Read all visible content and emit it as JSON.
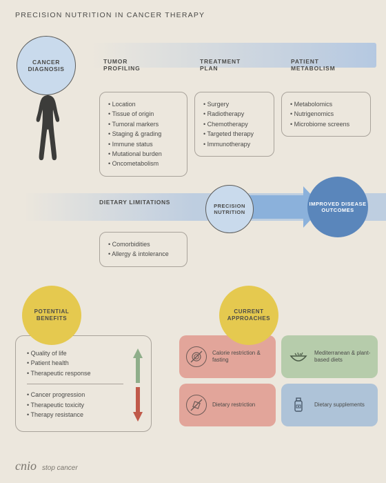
{
  "title": "PRECISION NUTRITION IN CANCER THERAPY",
  "colors": {
    "background": "#ece7dd",
    "blue_light": "#c9daec",
    "blue_mid": "#8bb1db",
    "blue_dark": "#5a86bb",
    "yellow": "#e5c94f",
    "salmon": "#e2a59a",
    "green": "#b6ccab",
    "steel": "#aec3d8",
    "up_arrow": "#8fae8a",
    "down_arrow": "#c05a4a"
  },
  "stages": {
    "diagnosis": "CANCER\nDIAGNOSIS",
    "tumor": "TUMOR\nPROFILING",
    "treatment": "TREATMENT\nPLAN",
    "metabolism": "PATIENT\nMETABOLISM"
  },
  "tumor_items": [
    "Location",
    "Tissue of origin",
    "Tumoral markers",
    "Staging & grading",
    "Immune status",
    "Mutational burden",
    "Oncometabolism"
  ],
  "treatment_items": [
    "Surgery",
    "Radiotherapy",
    "Chemotherapy",
    "Targeted therapy",
    "Immunotherapy"
  ],
  "metabolism_items": [
    "Metabolomics",
    "Nutrigenomics",
    "Microbiome screens"
  ],
  "dietary_label": "DIETARY\nLIMITATIONS",
  "dietary_items": [
    "Comorbidities",
    "Allergy & intolerance"
  ],
  "precision": "PRECISION\nNUTRITION",
  "outcome": "IMPROVED\nDISEASE\nOUTCOMES",
  "potential_benefits": {
    "label": "POTENTIAL\nBENEFITS",
    "up": [
      "Quality of life",
      "Patient health",
      "Therapeutic response"
    ],
    "down": [
      "Cancer progression",
      "Therapeutic toxicity",
      "Therapy resistance"
    ]
  },
  "current_approaches": {
    "label": "CURRENT\nAPPROACHES",
    "items": [
      {
        "key": "fasting",
        "label": "Calorie\nrestriction\n& fasting",
        "color": "#e2a59a",
        "icon": "no-plate"
      },
      {
        "key": "medit",
        "label": "Mediterranean\n& plant-based\ndiets",
        "color": "#b6ccab",
        "icon": "bowl"
      },
      {
        "key": "restrict",
        "label": "Dietary\nrestriction",
        "color": "#e2a59a",
        "icon": "no-sugar"
      },
      {
        "key": "suppl",
        "label": "Dietary\nsupplements",
        "color": "#aec3d8",
        "icon": "bottle"
      }
    ]
  },
  "footer": {
    "logo": "cnio",
    "slogan": "stop cancer"
  }
}
